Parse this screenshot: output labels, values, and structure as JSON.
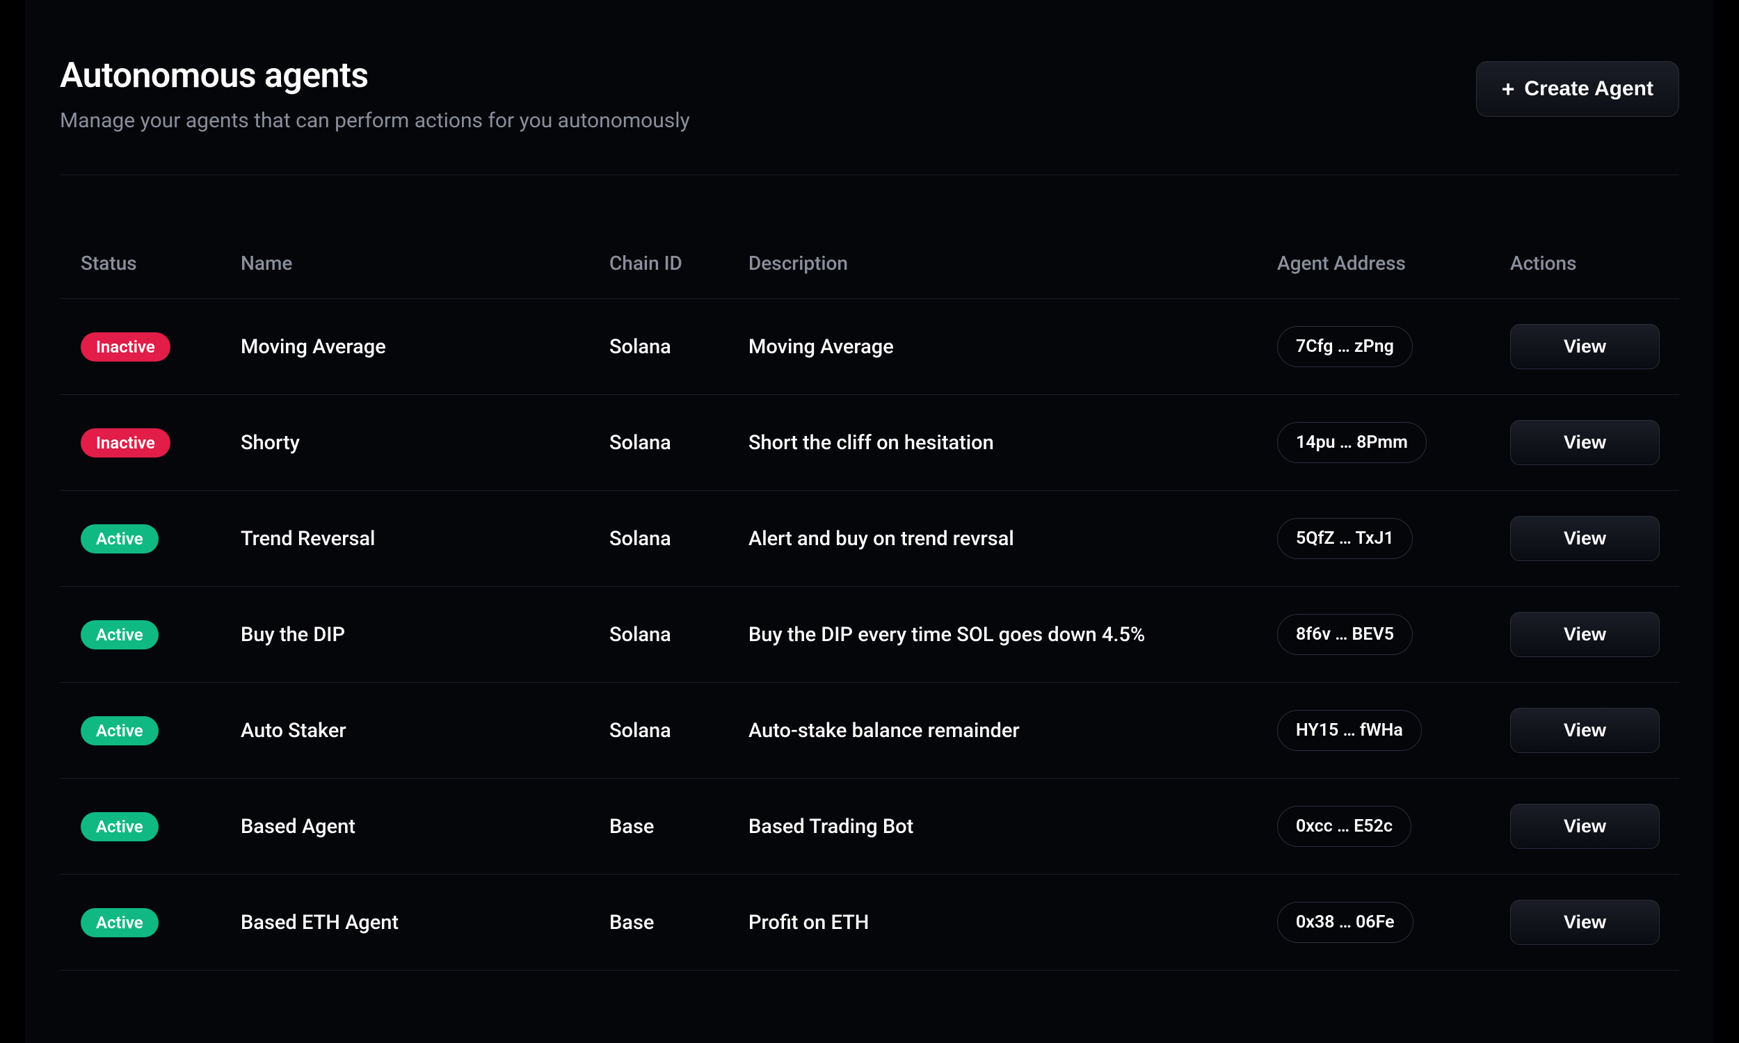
{
  "header": {
    "title": "Autonomous agents",
    "subtitle": "Manage your agents that can perform actions for you autonomously",
    "create_button_label": "Create Agent"
  },
  "table": {
    "columns": {
      "status": "Status",
      "name": "Name",
      "chain_id": "Chain ID",
      "description": "Description",
      "agent_address": "Agent Address",
      "actions": "Actions"
    },
    "status_labels": {
      "active": "Active",
      "inactive": "Inactive"
    },
    "view_button_label": "View",
    "rows": [
      {
        "status": "inactive",
        "name": "Moving Average",
        "chain_id": "Solana",
        "description": "Moving Average",
        "address": "7Cfg … zPng"
      },
      {
        "status": "inactive",
        "name": "Shorty",
        "chain_id": "Solana",
        "description": "Short the cliff on hesitation",
        "address": "14pu … 8Pmm"
      },
      {
        "status": "active",
        "name": "Trend Reversal",
        "chain_id": "Solana",
        "description": "Alert and buy on trend revrsal",
        "address": "5QfZ … TxJ1"
      },
      {
        "status": "active",
        "name": "Buy the DIP",
        "chain_id": "Solana",
        "description": "Buy the DIP every time SOL goes down 4.5%",
        "address": "8f6v … BEV5"
      },
      {
        "status": "active",
        "name": "Auto Staker",
        "chain_id": "Solana",
        "description": "Auto-stake balance remainder",
        "address": "HY15 … fWHa"
      },
      {
        "status": "active",
        "name": "Based Agent",
        "chain_id": "Base",
        "description": "Based Trading Bot",
        "address": "0xcc … E52c"
      },
      {
        "status": "active",
        "name": "Based ETH Agent",
        "chain_id": "Base",
        "description": "Profit on ETH",
        "address": "0x38 … 06Fe"
      }
    ]
  },
  "colors": {
    "background": "#000000",
    "panel_background": "#05060a",
    "text_primary": "#ffffff",
    "text_muted": "#8a8f9c",
    "border": "#1a1d26",
    "pill_border": "#2a2e3a",
    "status_inactive": "#e11d48",
    "status_active": "#10b981"
  }
}
